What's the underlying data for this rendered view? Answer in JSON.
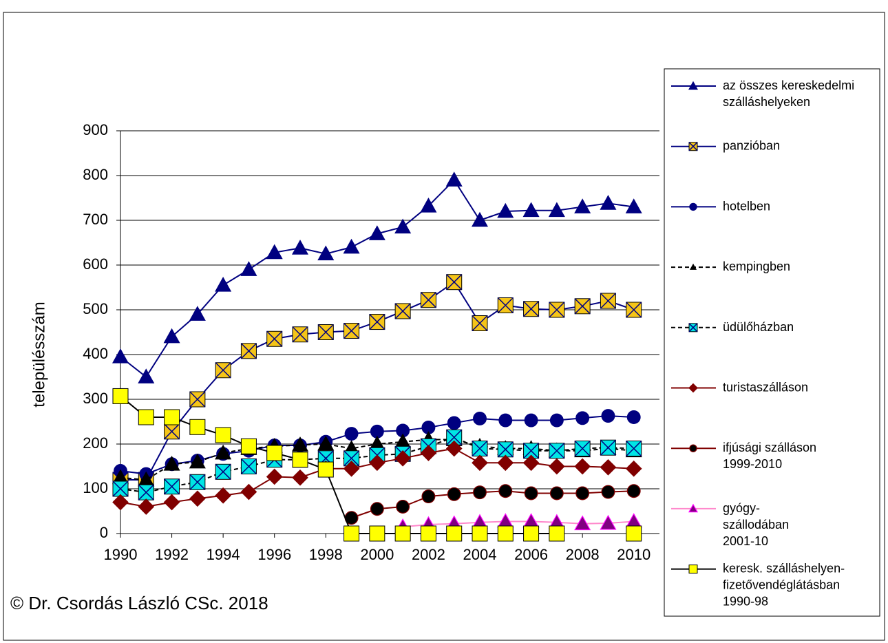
{
  "chart_data": {
    "type": "line",
    "y_label": "településszám",
    "footnote": "© Dr. Csordás László CSc. 2018",
    "x": [
      1990,
      1991,
      1992,
      1993,
      1994,
      1995,
      1996,
      1997,
      1998,
      1999,
      2000,
      2001,
      2002,
      2003,
      2004,
      2005,
      2006,
      2007,
      2008,
      2009,
      2010
    ],
    "xlim": [
      1990,
      2011
    ],
    "xticks": [
      1990,
      1992,
      1994,
      1996,
      1998,
      2000,
      2002,
      2004,
      2006,
      2008,
      2010
    ],
    "ylim": [
      0,
      900
    ],
    "yticks": [
      0,
      100,
      200,
      300,
      400,
      500,
      600,
      700,
      800,
      900
    ],
    "grid": true,
    "legend": "right",
    "series": [
      {
        "name": "az összes kereskedelmi\nszálláshelyeken",
        "color": "#000080",
        "marker": "triangle",
        "marker_fill": "#000080",
        "dash": false,
        "values": [
          395,
          350,
          440,
          490,
          555,
          590,
          628,
          638,
          625,
          640,
          670,
          685,
          732,
          790,
          700,
          720,
          722,
          722,
          730,
          738,
          730
        ]
      },
      {
        "name": "panzióban",
        "color": "#000080",
        "marker": "squarex",
        "marker_fill": "#f5c518",
        "dash": false,
        "values": [
          120,
          120,
          228,
          300,
          365,
          408,
          435,
          445,
          450,
          453,
          473,
          497,
          522,
          562,
          470,
          510,
          502,
          500,
          508,
          520,
          500
        ]
      },
      {
        "name": "hotelben",
        "color": "#000080",
        "marker": "circle",
        "marker_fill": "#000080",
        "dash": false,
        "values": [
          140,
          133,
          155,
          163,
          178,
          185,
          197,
          197,
          205,
          223,
          228,
          230,
          237,
          247,
          257,
          253,
          253,
          253,
          258,
          263,
          260
        ]
      },
      {
        "name": "kempingben",
        "color": "#000000",
        "marker": "triangle",
        "marker_fill": "#000000",
        "dash": true,
        "values": [
          125,
          120,
          155,
          160,
          180,
          190,
          195,
          198,
          200,
          190,
          200,
          205,
          210,
          210,
          195,
          190,
          190,
          185,
          185,
          190,
          185
        ]
      },
      {
        "name": "üdülőházban",
        "color": "#000000",
        "marker": "squarex",
        "marker_fill": "#00e5e5",
        "dash": true,
        "values": [
          100,
          92,
          105,
          115,
          138,
          150,
          165,
          165,
          168,
          168,
          175,
          178,
          195,
          215,
          190,
          188,
          185,
          185,
          190,
          192,
          190
        ]
      },
      {
        "name": "turistaszálláson",
        "color": "#800000",
        "marker": "diamond",
        "marker_fill": "#800000",
        "dash": false,
        "values": [
          70,
          60,
          70,
          78,
          85,
          93,
          127,
          125,
          145,
          145,
          158,
          168,
          180,
          190,
          158,
          158,
          158,
          150,
          150,
          148,
          145
        ]
      },
      {
        "name": "ifjúsági szálláson\n1999-2010",
        "color": "#800000",
        "marker": "circle",
        "marker_fill": "#000000",
        "dash": false,
        "values": [
          null,
          null,
          null,
          null,
          null,
          null,
          null,
          null,
          null,
          35,
          55,
          60,
          83,
          88,
          92,
          95,
          90,
          90,
          90,
          93,
          95
        ]
      },
      {
        "name": "gyógy-\nszállodában\n2001-10",
        "color": "#ff88cc",
        "marker": "triangle",
        "marker_fill": "#800080",
        "dash": false,
        "values": [
          null,
          null,
          null,
          null,
          null,
          null,
          null,
          null,
          null,
          null,
          null,
          15,
          20,
          22,
          25,
          27,
          27,
          25,
          22,
          23,
          27
        ]
      },
      {
        "name": "keresk. szálláshelyen-\nfizetővendéglátásban\n1990-98",
        "color": "#000000",
        "marker": "square",
        "marker_fill": "#ffff00",
        "dash": false,
        "values": [
          307,
          260,
          260,
          238,
          220,
          195,
          180,
          165,
          143,
          0,
          0,
          0,
          0,
          0,
          0,
          0,
          0,
          0,
          null,
          null,
          0
        ]
      }
    ]
  }
}
